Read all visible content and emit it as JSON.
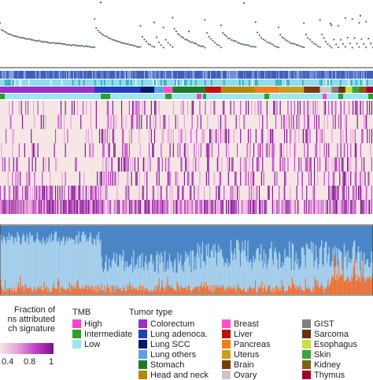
{
  "chart_data": {
    "type": "heatmap",
    "panels": [
      "scatter",
      "annotation-tracks",
      "signature-heatmap",
      "stacked-area"
    ],
    "colorbar": {
      "title_lines": [
        "Fraction of",
        "ns attributed",
        "ch signature"
      ],
      "ticks": [
        "0.4",
        "0.8",
        "1"
      ],
      "colors": [
        "#f6e6e6",
        "#e8a0d8",
        "#c040c8",
        "#7a1090"
      ]
    },
    "tmb_legend": {
      "title": "TMB",
      "items": [
        {
          "label": "High",
          "color": "#ff40d0"
        },
        {
          "label": "Intermediate",
          "color": "#2ca02c"
        },
        {
          "label": "Low",
          "color": "#9ee6f0"
        }
      ]
    },
    "tumor_legend": {
      "title": "Tumor type",
      "columns": [
        [
          {
            "label": "Colorectum",
            "color": "#9b30c8"
          },
          {
            "label": "Lung adenoca.",
            "color": "#1f3fbf"
          },
          {
            "label": "Lung SCC",
            "color": "#0a1a6a"
          },
          {
            "label": "Lung others",
            "color": "#5aa0e8"
          },
          {
            "label": "Stomach",
            "color": "#1f7a2a"
          },
          {
            "label": "Head and neck",
            "color": "#b8860b"
          }
        ],
        [
          {
            "label": "Breast",
            "color": "#ff50c8"
          },
          {
            "label": "Liver",
            "color": "#c01010"
          },
          {
            "label": "Pancreas",
            "color": "#f07f1a"
          },
          {
            "label": "Uterus",
            "color": "#c8a020"
          },
          {
            "label": "Brain",
            "color": "#7a3a10"
          },
          {
            "label": "Ovary",
            "color": "#c8c8c8"
          }
        ],
        [
          {
            "label": "GIST",
            "color": "#808080"
          },
          {
            "label": "Sarcoma",
            "color": "#6a3010"
          },
          {
            "label": "Esophagus",
            "color": "#c8e040"
          },
          {
            "label": "Skin",
            "color": "#3aa040"
          },
          {
            "label": "Kidney",
            "color": "#7a6010"
          },
          {
            "label": "Thymus",
            "color": "#a00030"
          }
        ]
      ]
    },
    "segment_order": [
      "Colorectum",
      "Lung adenoca.",
      "Lung SCC",
      "Lung others",
      "Breast",
      "Stomach",
      "Liver",
      "Head and neck",
      "Pancreas",
      "Uterus",
      "Brain",
      "Ovary",
      "GIST",
      "Sarcoma",
      "Esophagus",
      "Skin",
      "Kidney",
      "Thymus"
    ],
    "segment_sizes": [
      82,
      40,
      12,
      8,
      8,
      28,
      14,
      30,
      20,
      22,
      14,
      10,
      6,
      6,
      6,
      6,
      6,
      6
    ],
    "heatmap_rows": 8,
    "stacked_series": [
      {
        "color": "#4a86c6"
      },
      {
        "color": "#a8d0ec"
      },
      {
        "color": "#f07030"
      }
    ]
  }
}
